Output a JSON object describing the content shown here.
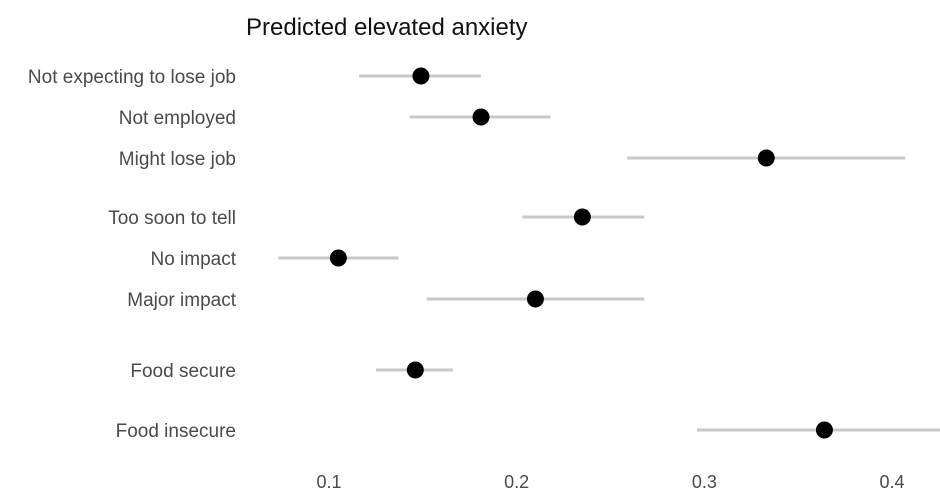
{
  "chart_data": {
    "type": "scatter",
    "title": "Predicted elevated anxiety",
    "xlabel": "",
    "ylabel": "",
    "xlim": [
      0.04,
      0.43
    ],
    "xticks": [
      0.1,
      0.2,
      0.3,
      0.4
    ],
    "xtick_labels": [
      "0.1",
      "0.2",
      "0.3",
      "0.4"
    ],
    "grid": false,
    "legend": "none",
    "point_color": "#000000",
    "interval_color": "#c8c8c8",
    "groups": [
      {
        "items": [
          {
            "label": "Not expecting to lose job",
            "value": 0.149,
            "lower": 0.116,
            "upper": 0.181
          },
          {
            "label": "Not employed",
            "value": 0.181,
            "lower": 0.143,
            "upper": 0.218
          },
          {
            "label": "Might lose job",
            "value": 0.333,
            "lower": 0.259,
            "upper": 0.407
          }
        ]
      },
      {
        "items": [
          {
            "label": "Too soon to tell",
            "value": 0.235,
            "lower": 0.203,
            "upper": 0.268
          },
          {
            "label": "No impact",
            "value": 0.105,
            "lower": 0.073,
            "upper": 0.137
          },
          {
            "label": "Major impact",
            "value": 0.21,
            "lower": 0.152,
            "upper": 0.268
          }
        ]
      },
      {
        "items": [
          {
            "label": "Food secure",
            "value": 0.146,
            "lower": 0.125,
            "upper": 0.166
          }
        ]
      },
      {
        "items": [
          {
            "label": "Food insecure",
            "value": 0.364,
            "lower": 0.296,
            "upper": 0.432
          }
        ]
      }
    ]
  }
}
